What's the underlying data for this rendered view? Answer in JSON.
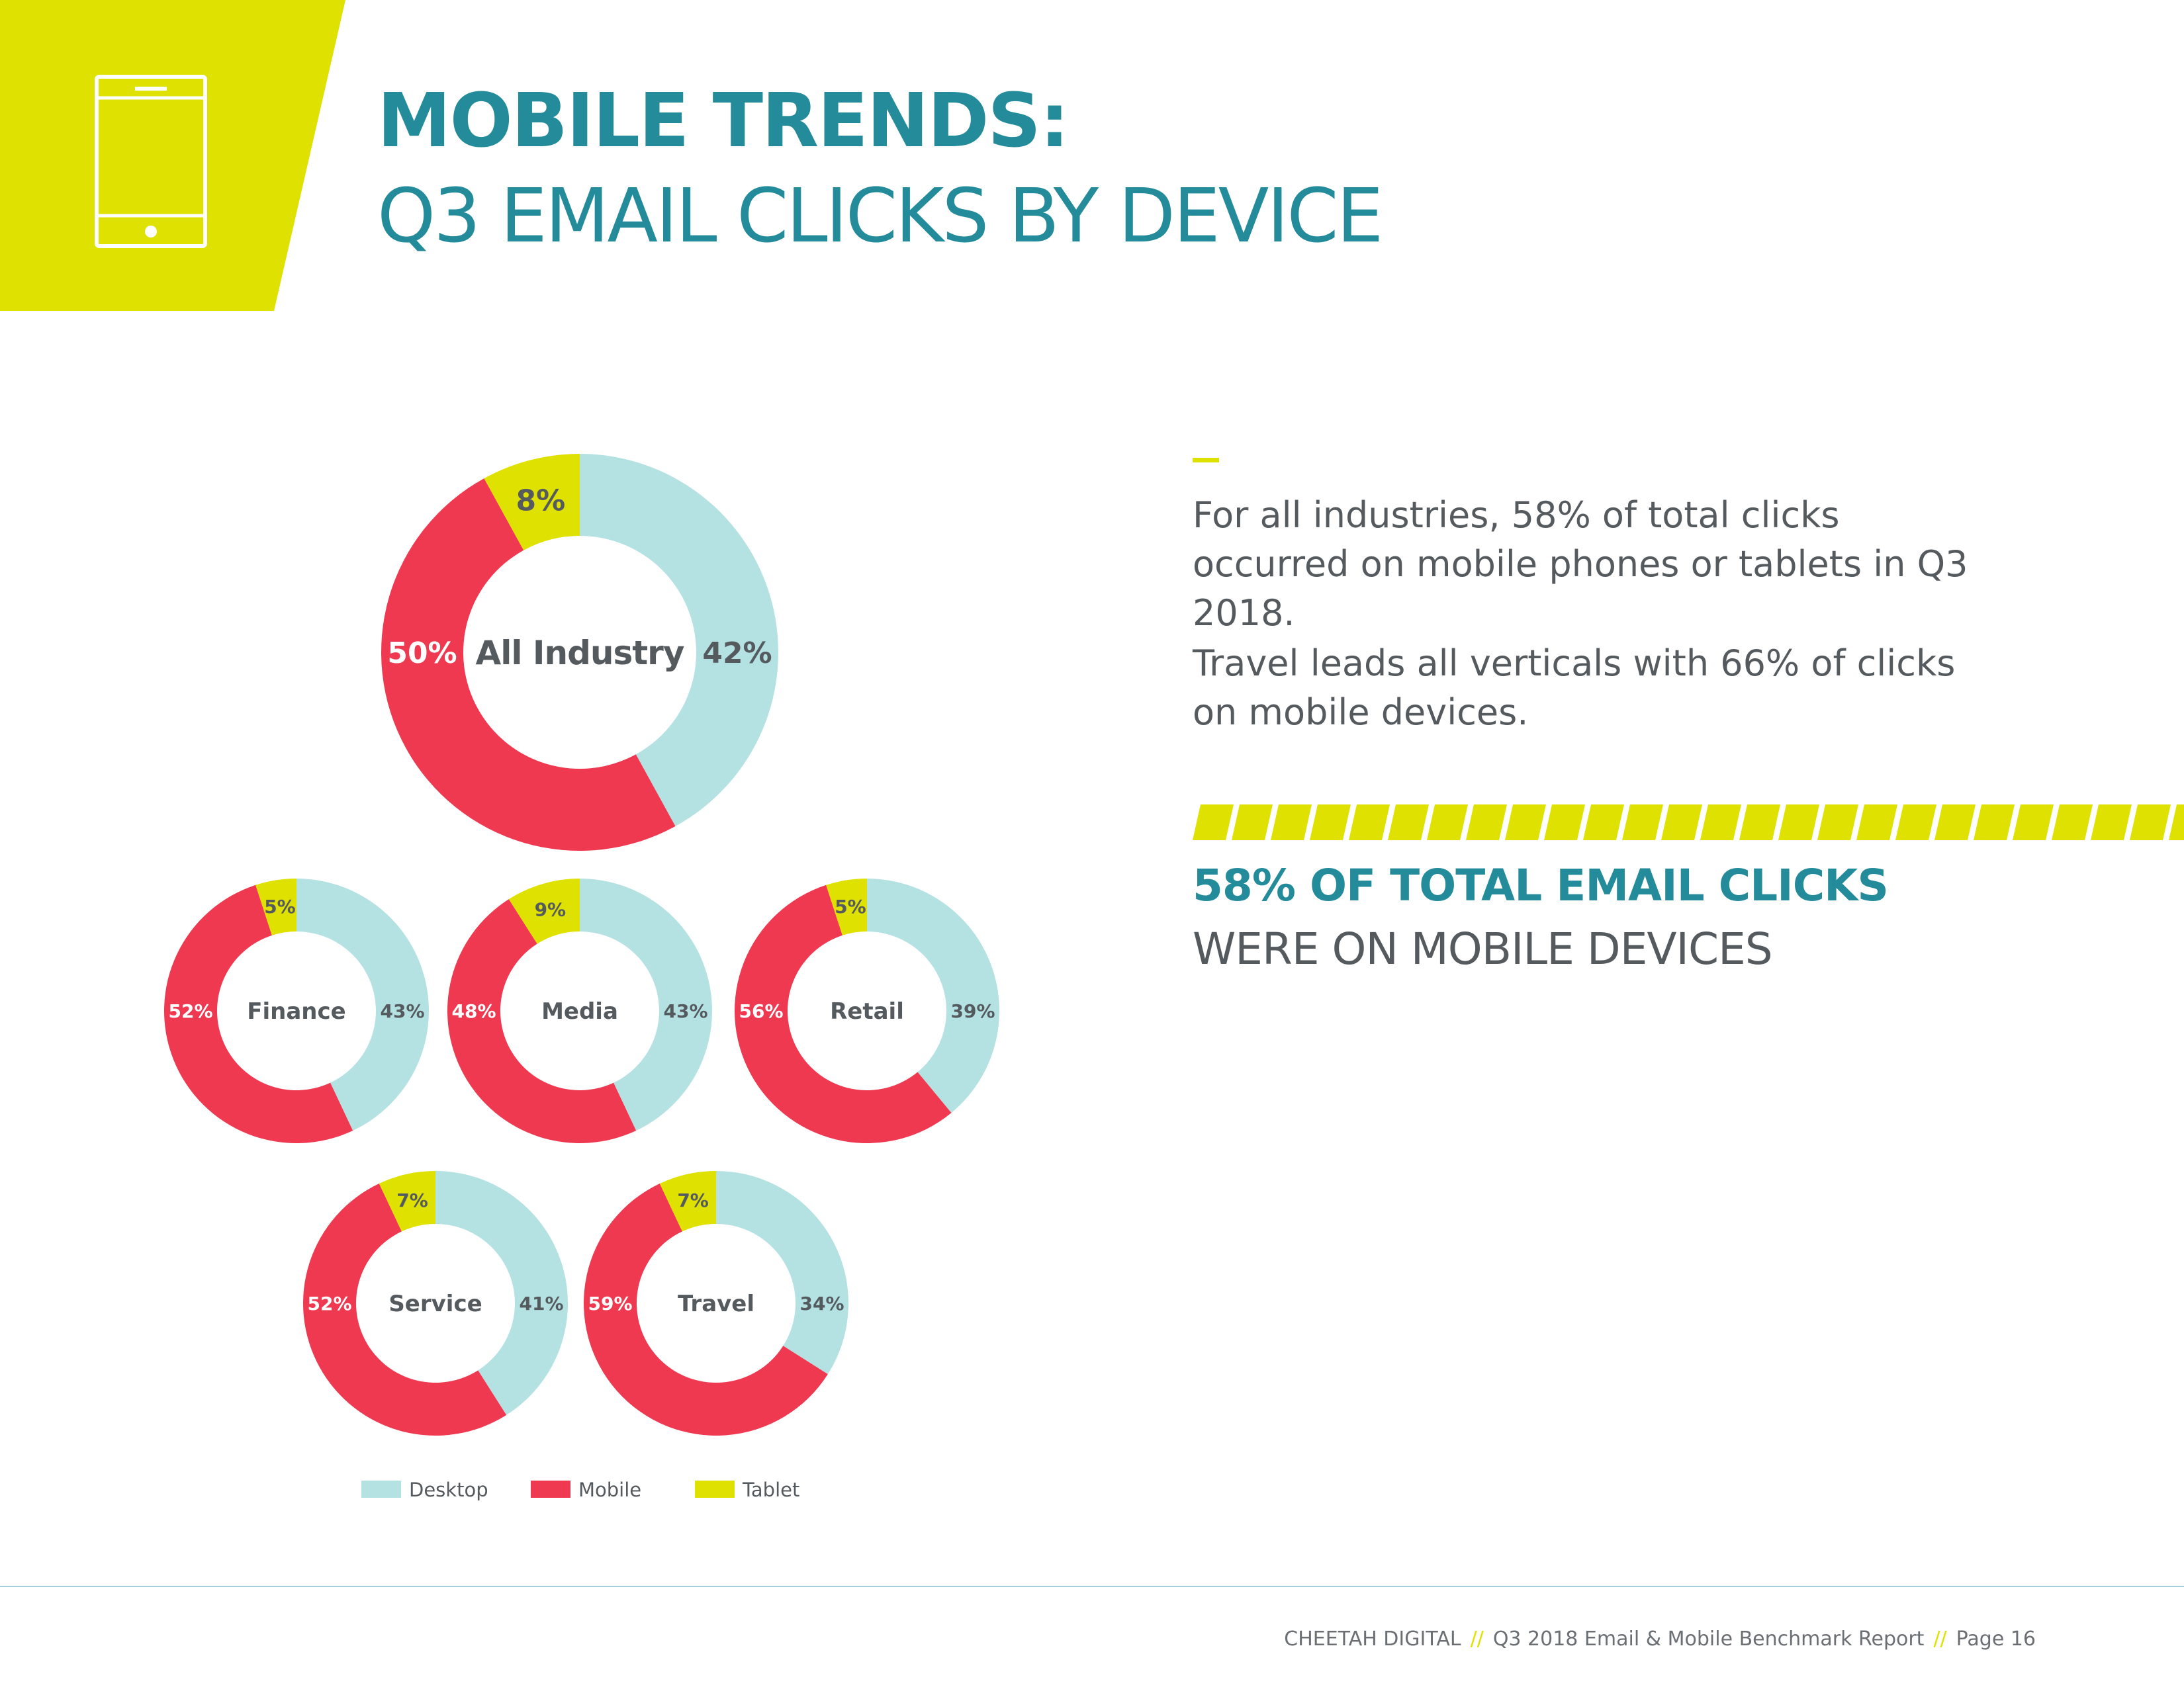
{
  "header": {
    "title_line1": "MOBILE TRENDS:",
    "title_line2": "Q3 EMAIL CLICKS BY DEVICE",
    "icon": "tablet-icon"
  },
  "colors": {
    "accent_yellow": "#dfe100",
    "teal": "#238b9a",
    "desktop": "#b4e1e2",
    "mobile": "#ef3951",
    "tablet": "#dfe100",
    "text_gray": "#555a5f"
  },
  "chart_data": [
    {
      "type": "pie",
      "title": "All Industry",
      "categories": [
        "Desktop",
        "Mobile",
        "Tablet"
      ],
      "values": [
        42,
        50,
        8
      ],
      "labels": [
        "42%",
        "50%",
        "8%"
      ]
    },
    {
      "type": "pie",
      "title": "Finance",
      "categories": [
        "Desktop",
        "Mobile",
        "Tablet"
      ],
      "values": [
        43,
        52,
        5
      ],
      "labels": [
        "43%",
        "52%",
        "5%"
      ]
    },
    {
      "type": "pie",
      "title": "Media",
      "categories": [
        "Desktop",
        "Mobile",
        "Tablet"
      ],
      "values": [
        43,
        48,
        9
      ],
      "labels": [
        "43%",
        "48%",
        "9%"
      ]
    },
    {
      "type": "pie",
      "title": "Retail",
      "categories": [
        "Desktop",
        "Mobile",
        "Tablet"
      ],
      "values": [
        39,
        56,
        5
      ],
      "labels": [
        "39%",
        "56%",
        "5%"
      ]
    },
    {
      "type": "pie",
      "title": "Service",
      "categories": [
        "Desktop",
        "Mobile",
        "Tablet"
      ],
      "values": [
        41,
        52,
        7
      ],
      "labels": [
        "41%",
        "52%",
        "7%"
      ]
    },
    {
      "type": "pie",
      "title": "Travel",
      "categories": [
        "Desktop",
        "Mobile",
        "Tablet"
      ],
      "values": [
        34,
        59,
        7
      ],
      "labels": [
        "34%",
        "59%",
        "7%"
      ]
    }
  ],
  "legend": {
    "items": [
      {
        "label": "Desktop",
        "color": "#b4e1e2"
      },
      {
        "label": "Mobile",
        "color": "#ef3951"
      },
      {
        "label": "Tablet",
        "color": "#dfe100"
      }
    ]
  },
  "insights": {
    "para1": "For all industries, 58% of total clicks occurred on mobile phones or tablets in Q3 2018.",
    "para2": "Travel leads all verticals with 66% of clicks on mobile devices."
  },
  "highlight": {
    "line1": "58% OF TOTAL EMAIL CLICKS",
    "line2": "WERE ON MOBILE DEVICES"
  },
  "footer": {
    "company": "CHEETAH DIGITAL",
    "report": "Q3 2018 Email & Mobile Benchmark Report",
    "page": "Page 16",
    "separator": "//"
  }
}
